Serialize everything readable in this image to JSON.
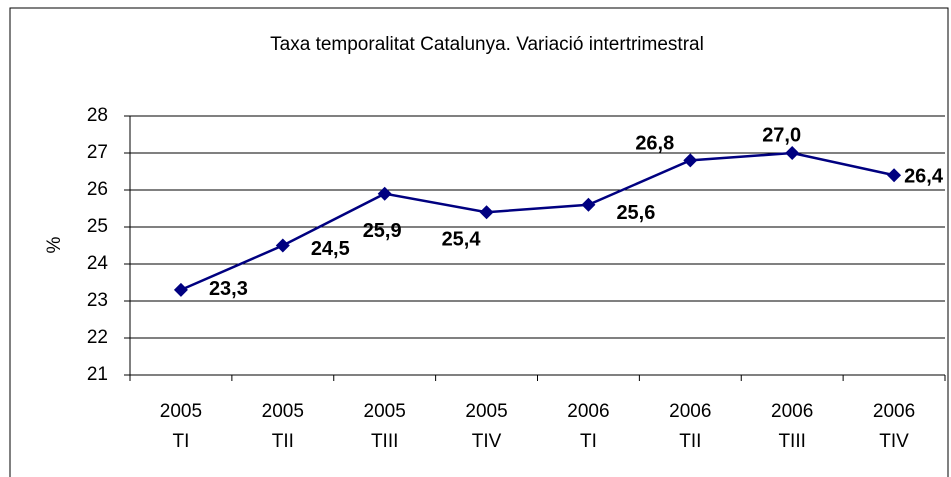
{
  "chart_data": {
    "type": "line",
    "title": "Taxa temporalitat Catalunya. Variació intertrimestral",
    "y_label": "%",
    "categories": [
      [
        "2005",
        "TI"
      ],
      [
        "2005",
        "TII"
      ],
      [
        "2005",
        "TIII"
      ],
      [
        "2005",
        "TIV"
      ],
      [
        "2006",
        "TI"
      ],
      [
        "2006",
        "TII"
      ],
      [
        "2006",
        "TIII"
      ],
      [
        "2006",
        "TIV"
      ]
    ],
    "series": [
      {
        "name": "Taxa temporalitat",
        "color": "#000080",
        "values": [
          23.3,
          24.5,
          25.9,
          25.4,
          25.6,
          26.8,
          27.0,
          26.4
        ],
        "value_labels": [
          "23,3",
          "24,5",
          "25,9",
          "25,4",
          "25,6",
          "26,8",
          "27,0",
          "26,4"
        ]
      }
    ],
    "ylim": [
      21,
      28
    ],
    "yticks": [
      21,
      22,
      23,
      24,
      25,
      26,
      27,
      28
    ],
    "grid": true
  }
}
